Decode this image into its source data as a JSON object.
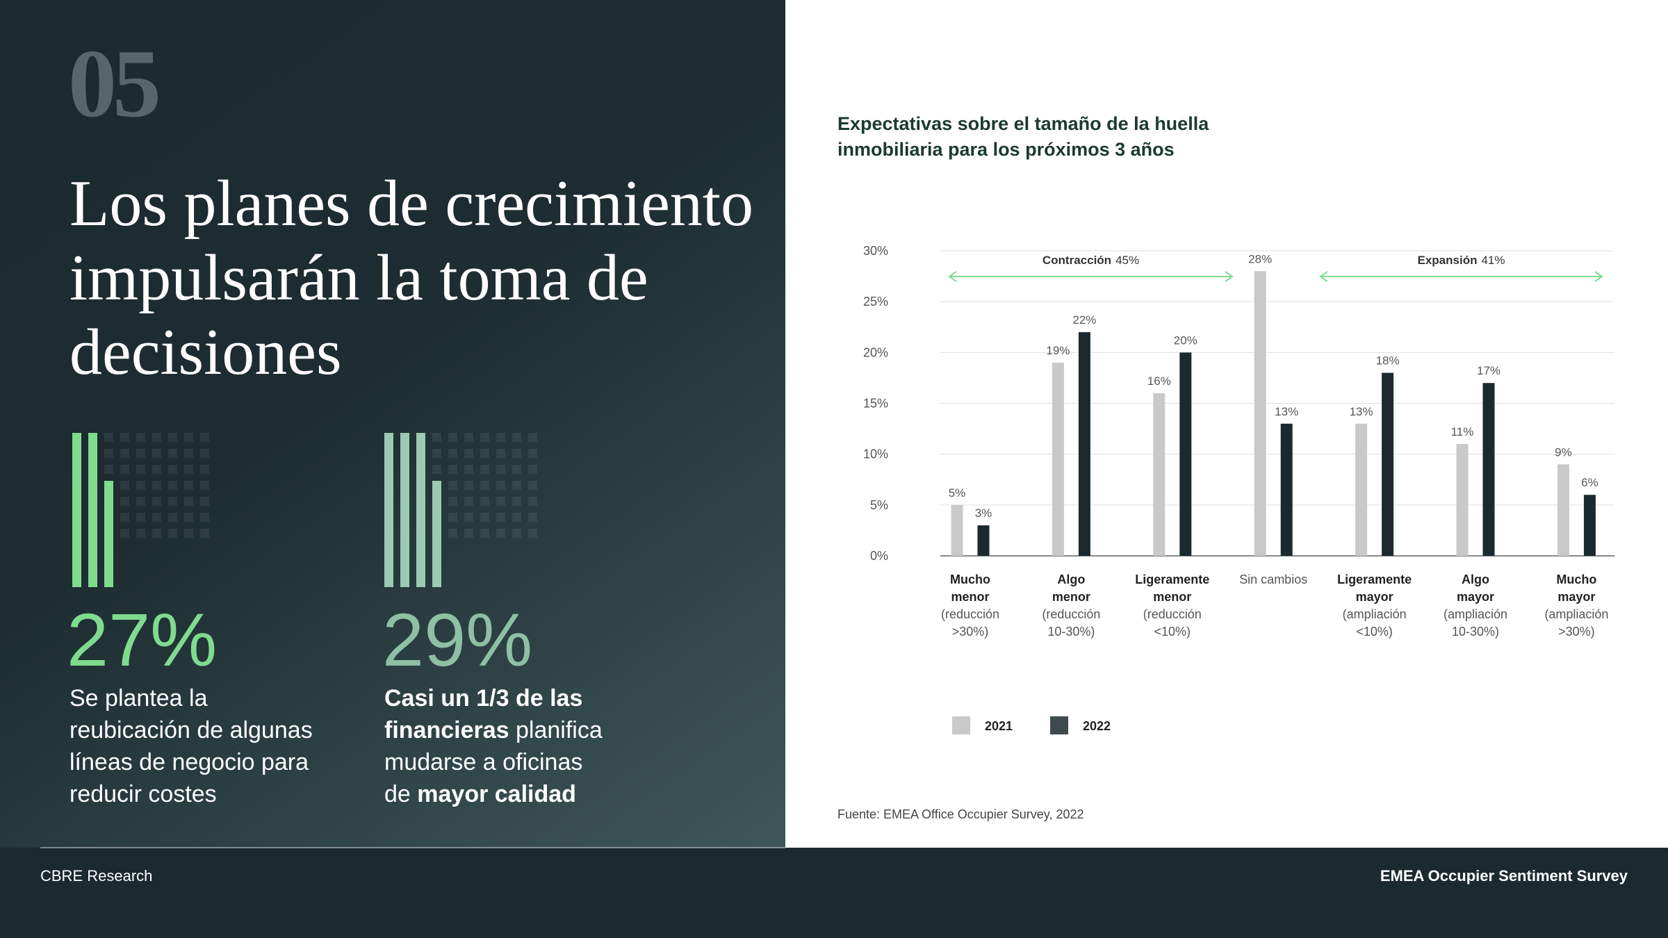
{
  "page": {
    "section_number": "05",
    "headline": "Los planes de crecimiento impulsarán la toma de decisiones",
    "stats": [
      {
        "figure": "27%",
        "description": [
          {
            "text": "Se plantea la reubicación de algunas líneas de negocio para reducir costes",
            "bold": false
          }
        ]
      },
      {
        "figure": "29%",
        "description": [
          {
            "text": "Casi un 1/3 de las financieras",
            "bold": true
          },
          {
            "text": "planifica mudarse a oficinas de",
            "bold": false
          },
          {
            "text": "mayor calidad",
            "bold": true
          }
        ]
      }
    ],
    "footer_left": "CBRE Research",
    "footer_right": "EMEA Occupier Sentiment Survey"
  },
  "chart_data": {
    "type": "bar",
    "title": "Expectativas sobre el tamaño de la huella inmobiliaria para los próximos 3 años",
    "categories": [
      "Mucho menor",
      "Algo menor",
      "Ligeramente menor",
      "Sin cambios",
      "Ligeramente mayor",
      "Algo mayor",
      "Mucho mayor"
    ],
    "category_notes": [
      "(reducción >30%)",
      "(reducción 10-30%)",
      "(reducción <10%)",
      null,
      "(ampliación <10%)",
      "(ampliación 10-30%)",
      "(ampliación >30%)"
    ],
    "series": [
      {
        "name": "2021",
        "color": "#c9c9c9",
        "values": [
          5,
          19,
          16,
          28,
          13,
          11,
          9
        ],
        "value_labels": [
          "5%",
          "19%",
          "16%",
          "28%",
          "13%",
          "11%",
          "9%"
        ]
      },
      {
        "name": "2022",
        "color": "#1b2a2f",
        "values": [
          3,
          22,
          20,
          13,
          18,
          17,
          6
        ],
        "value_labels": [
          "3%",
          "22%",
          "20%",
          "13%",
          "18%",
          "17%",
          "6%"
        ]
      }
    ],
    "ylim": [
      0,
      30
    ],
    "yticks": [
      {
        "value": 0,
        "label": "0%"
      },
      {
        "value": 5,
        "label": "5%"
      },
      {
        "value": 10,
        "label": "10%"
      },
      {
        "value": 15,
        "label": "15%"
      },
      {
        "value": 20,
        "label": "20%"
      },
      {
        "value": 25,
        "label": "25%"
      },
      {
        "value": 30,
        "label": "30%"
      }
    ],
    "grid": true,
    "annotations": [
      {
        "label": "Contracción",
        "value_label": "45%"
      },
      {
        "label": "Expansión",
        "value_label": "41%"
      }
    ],
    "source": "Fuente: EMEA Office Occupier Survey, 2022"
  }
}
